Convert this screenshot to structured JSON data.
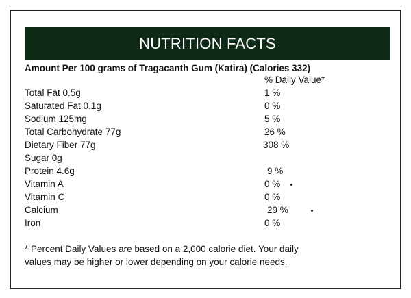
{
  "title": "NUTRITION FACTS",
  "subtitle": "Amount Per 100 grams of Tragacanth Gum (Katira) (Calories 332)",
  "column_header": "% Daily Value*",
  "rows": [
    [
      "Total Fat 0.5g",
      "1 %"
    ],
    [
      "Saturated Fat 0.1g",
      "0 %"
    ],
    [
      "Sodium 125mg",
      "5 %"
    ],
    [
      "Total Carbohydrate 77g",
      "26 %"
    ],
    [
      "Dietary Fiber 77g",
      "308 %"
    ],
    [
      "Sugar 0g",
      null
    ],
    [
      "Protein 4.6g",
      "9 %"
    ],
    [
      "Vitamin A",
      "0 %"
    ],
    [
      "Vitamin C",
      "0 %"
    ],
    [
      "Calcium",
      "29 %"
    ],
    [
      "Iron",
      "0 %"
    ]
  ],
  "footnote": [
    "* Percent Daily Values are based on a 2,000 calorie diet. Your daily",
    "values may be higher or lower depending on your calorie needs."
  ]
}
